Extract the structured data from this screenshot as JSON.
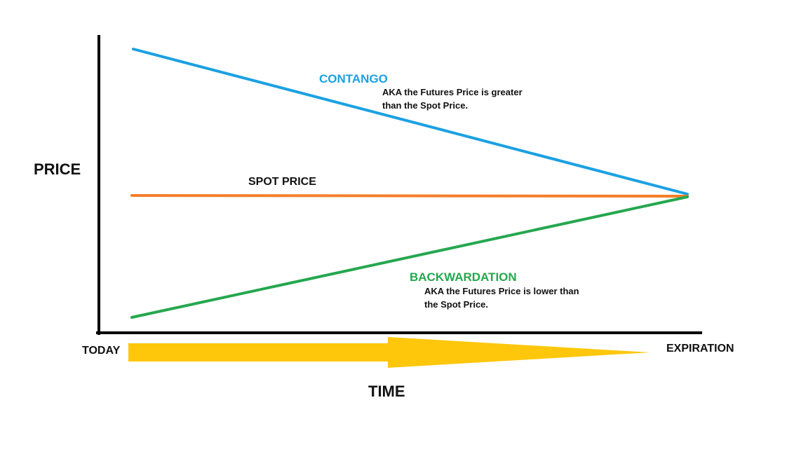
{
  "y_axis": {
    "label": "PRICE"
  },
  "x_axis": {
    "label": "TIME",
    "start_label": "TODAY",
    "end_label": "EXPIRATION"
  },
  "contango": {
    "title": "CONTANGO",
    "note_line1": "AKA the Futures Price is greater",
    "note_line2": "than the Spot Price.",
    "color": "#1ba1e2"
  },
  "spot": {
    "title": "SPOT PRICE",
    "color": "#f47e2a"
  },
  "backwardation": {
    "title": "BACKWARDATION",
    "note_line1": "AKA the Futures Price is lower than",
    "note_line2": "the Spot Price.",
    "color": "#25a74f"
  },
  "colors": {
    "axis": "#000000",
    "time_arrow": "#fec70c",
    "text": "#111111"
  }
}
